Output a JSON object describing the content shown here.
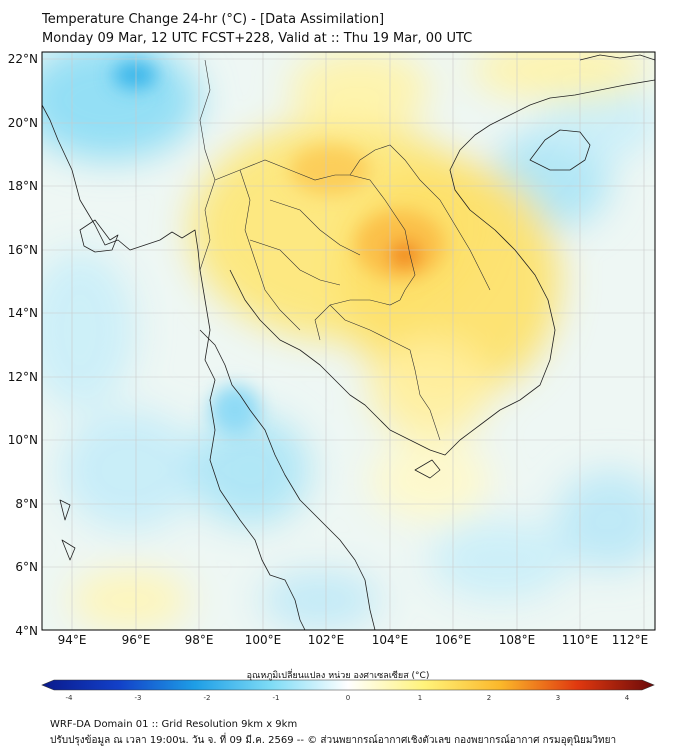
{
  "header": {
    "title_line1": "Temperature Change 24-hr (°C) - [Data Assimilation]",
    "title_line2": "Monday 09 Mar, 12 UTC FCST+228, Valid at :: Thu 19 Mar, 00 UTC"
  },
  "map": {
    "lat_labels": [
      "22°N",
      "20°N",
      "18°N",
      "16°N",
      "14°N",
      "12°N",
      "10°N",
      "8°N",
      "6°N",
      "4°N"
    ],
    "lon_labels": [
      "94°E",
      "96°E",
      "98°E",
      "100°E",
      "102°E",
      "104°E",
      "106°E",
      "108°E",
      "110°E",
      "112°E"
    ]
  },
  "colorbar": {
    "title": "อุณหภูมิเปลี่ยนแปลง หน่วย องศาเซลเซียส (°C)",
    "ticks": [
      "-4",
      "-3",
      "-2",
      "-1",
      "0",
      "1",
      "2",
      "3",
      "4"
    ],
    "colors": {
      "neg4": "#0a1a8c",
      "neg3": "#1240c8",
      "neg2": "#1e9ee6",
      "neg1": "#7fdcf6",
      "zero": "#ffffff",
      "pos1": "#fff37a",
      "pos2": "#fbb72a",
      "pos3": "#e0380f",
      "pos4": "#6b0a0a"
    }
  },
  "footer": {
    "line1": "WRF-DA Domain 01 :: Grid Resolution 9km x 9km",
    "line2": "ปรับปรุงข้อมูล ณ เวลา 19:00น. วัน จ. ที่ 09 มี.ค. 2569 -- © ส่วนพยากรณ์อากาศเชิงตัวเลข กองพยากรณ์อากาศ กรมอุตุนิยมวิทยา"
  }
}
